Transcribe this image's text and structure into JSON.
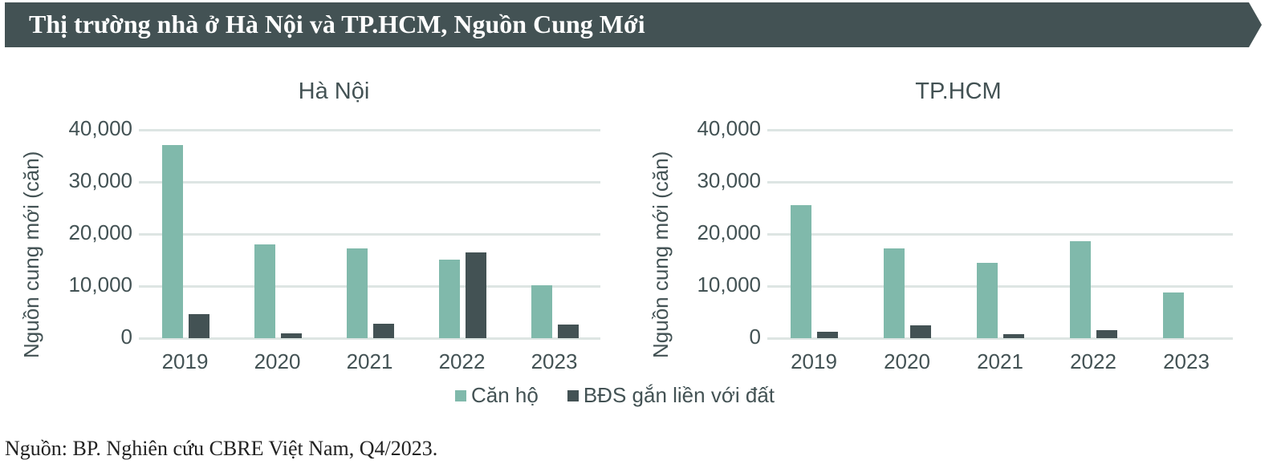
{
  "header": {
    "title": "Thị trường nhà ở Hà Nội và TP.HCM, Nguồn Cung Mới",
    "background": "#435254"
  },
  "legend": {
    "items": [
      {
        "label": "Căn hộ",
        "color": "#80B9AB"
      },
      {
        "label": "BĐS gắn liền với đất",
        "color": "#435254"
      }
    ]
  },
  "source": "Nguồn: BP. Nghiên cứu CBRE Việt Nam, Q4/2023.",
  "charts": [
    {
      "title": "Hà Nội",
      "ylabel": "Nguồn cung mới (căn)",
      "yticks": [
        "40,000",
        "30,000",
        "20,000",
        "10,000",
        "0"
      ],
      "xticks": [
        "2019",
        "2020",
        "2021",
        "2022",
        "2023"
      ]
    },
    {
      "title": "TP.HCM",
      "ylabel": "Nguồn cung mới (căn)",
      "yticks": [
        "40,000",
        "30,000",
        "20,000",
        "10,000",
        "0"
      ],
      "xticks": [
        "2019",
        "2020",
        "2021",
        "2022",
        "2023"
      ]
    }
  ],
  "chart_data": [
    {
      "type": "bar",
      "title": "Hà Nội",
      "xlabel": "",
      "ylabel": "Nguồn cung mới (căn)",
      "ylim": [
        0,
        40000
      ],
      "grid": true,
      "legend_position": "bottom",
      "categories": [
        "2019",
        "2020",
        "2021",
        "2022",
        "2023"
      ],
      "series": [
        {
          "name": "Căn hộ",
          "color": "#80B9AB",
          "values": [
            37100,
            18000,
            17200,
            15100,
            10100
          ]
        },
        {
          "name": "BĐS gắn liền với đất",
          "color": "#435254",
          "values": [
            4600,
            900,
            2800,
            16500,
            2600
          ]
        }
      ]
    },
    {
      "type": "bar",
      "title": "TP.HCM",
      "xlabel": "",
      "ylabel": "Nguồn cung mới (căn)",
      "ylim": [
        0,
        40000
      ],
      "grid": true,
      "legend_position": "bottom",
      "categories": [
        "2019",
        "2020",
        "2021",
        "2022",
        "2023"
      ],
      "series": [
        {
          "name": "Căn hộ",
          "color": "#80B9AB",
          "values": [
            25500,
            17200,
            14500,
            18600,
            8700
          ]
        },
        {
          "name": "BĐS gắn liền với đất",
          "color": "#435254",
          "values": [
            1200,
            2400,
            700,
            1600,
            0
          ]
        }
      ]
    }
  ]
}
